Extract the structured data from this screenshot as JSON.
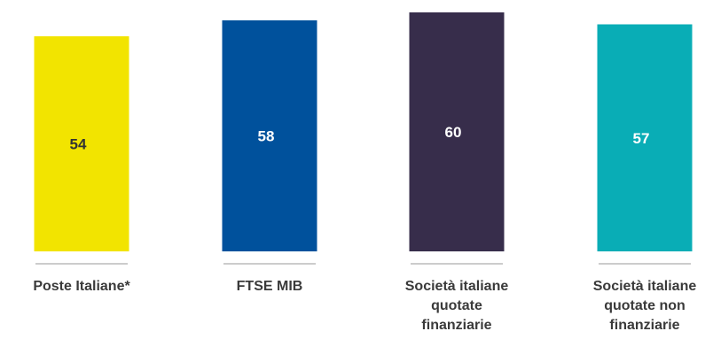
{
  "chart_data": {
    "type": "bar",
    "categories": [
      [
        "Poste Italiane*"
      ],
      [
        "FTSE MIB"
      ],
      [
        "Società italiane",
        "quotate",
        "finanziarie"
      ],
      [
        "Società italiane",
        "quotate non",
        "finanziarie"
      ]
    ],
    "values": [
      54,
      58,
      60,
      57
    ],
    "value_labels": [
      "54",
      "58",
      "60",
      "57"
    ],
    "colors": [
      "#f2e400",
      "#00519c",
      "#372d4b",
      "#09adb6"
    ],
    "value_label_colors": [
      "#333333",
      "#ffffff",
      "#ffffff",
      "#ffffff"
    ],
    "title": "",
    "xlabel": "",
    "ylabel": "",
    "grid": false,
    "legend": "none"
  }
}
